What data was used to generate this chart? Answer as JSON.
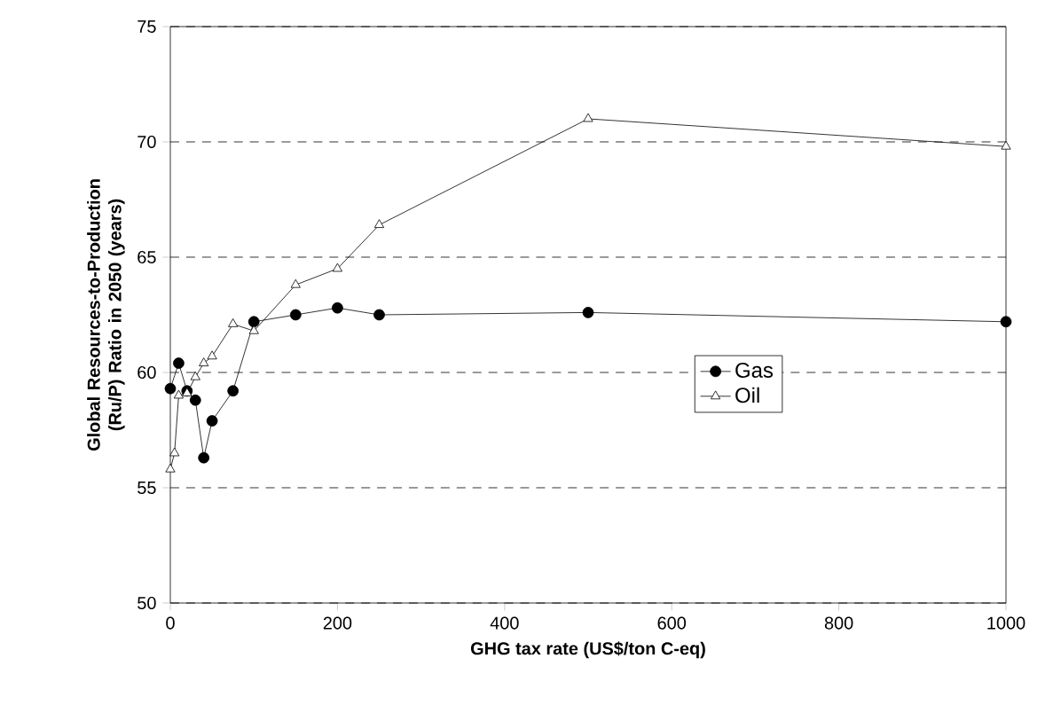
{
  "chart_data": {
    "type": "line",
    "xlabel": "GHG tax rate (US$/ton C-eq)",
    "ylabel": "Global Resources-to-Production (Ru/P) Ratio in 2050 (years)",
    "xlim": [
      0,
      1000
    ],
    "xticks": [
      0,
      200,
      400,
      600,
      800,
      1000
    ],
    "ylim": [
      50,
      75
    ],
    "yticks": [
      50,
      55,
      60,
      65,
      70,
      75
    ],
    "grid": "y",
    "legend": "right",
    "series": [
      {
        "name": "Gas",
        "color": "#000000",
        "marker": "circle",
        "x": [
          0,
          10,
          20,
          30,
          40,
          50,
          75,
          100,
          150,
          200,
          250,
          500,
          1000
        ],
        "values": [
          59.3,
          60.4,
          59.2,
          58.8,
          56.3,
          57.9,
          59.2,
          62.2,
          62.5,
          62.8,
          62.5,
          62.6,
          62.2
        ]
      },
      {
        "name": "Oil",
        "color": "#000000",
        "marker": "triangle",
        "x": [
          0,
          5,
          10,
          20,
          30,
          40,
          50,
          75,
          100,
          150,
          200,
          250,
          500,
          1000
        ],
        "values": [
          55.8,
          56.5,
          59.0,
          59.1,
          59.8,
          60.4,
          60.7,
          62.1,
          61.8,
          63.8,
          64.5,
          66.4,
          71.0,
          69.8
        ]
      }
    ]
  }
}
